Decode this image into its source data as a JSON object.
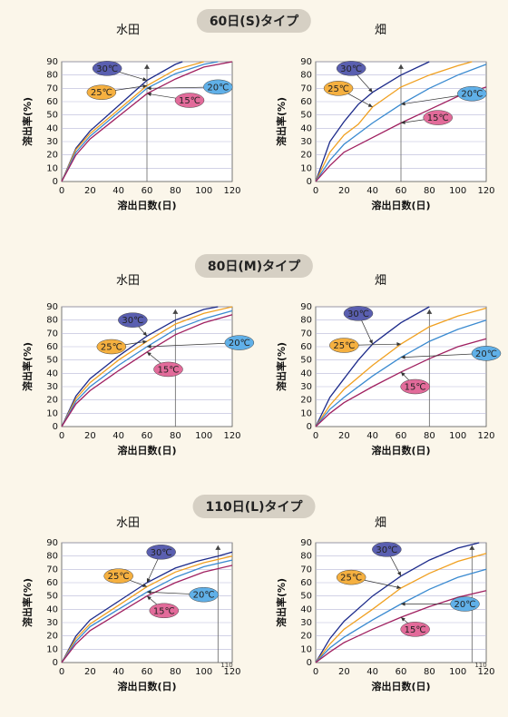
{
  "sections": [
    {
      "title": "60日(S)タイプ"
    },
    {
      "title": "80日(M)タイプ"
    },
    {
      "title": "110日(L)タイプ"
    }
  ],
  "chart_data": [
    {
      "type": "line",
      "section": 0,
      "caption": "水田",
      "xlabel": "溶出日数(日)",
      "ylabel": "溶出率(%)",
      "xlim": [
        0,
        120
      ],
      "ylim": [
        0,
        90
      ],
      "xticks": [
        0,
        20,
        40,
        60,
        80,
        100,
        120
      ],
      "yticks": [
        0,
        10,
        20,
        30,
        40,
        50,
        60,
        70,
        80,
        90
      ],
      "grid": true,
      "refline_x": 60,
      "annotation": "",
      "series": [
        {
          "name": "30℃",
          "color": "#1c2a8a",
          "bubble": "#5a5fb0",
          "points": [
            [
              0,
              0
            ],
            [
              10,
              25
            ],
            [
              20,
              38
            ],
            [
              40,
              57
            ],
            [
              60,
              76
            ],
            [
              80,
              88
            ],
            [
              85,
              90
            ]
          ]
        },
        {
          "name": "25℃",
          "color": "#f0a020",
          "bubble": "#f5b040",
          "points": [
            [
              0,
              0
            ],
            [
              10,
              24
            ],
            [
              20,
              36
            ],
            [
              40,
              54
            ],
            [
              60,
              72
            ],
            [
              80,
              84
            ],
            [
              100,
              90
            ]
          ]
        },
        {
          "name": "20℃",
          "color": "#3a8ad0",
          "bubble": "#60b0e8",
          "points": [
            [
              0,
              0
            ],
            [
              10,
              22
            ],
            [
              20,
              34
            ],
            [
              40,
              52
            ],
            [
              60,
              70
            ],
            [
              80,
              81
            ],
            [
              100,
              88
            ],
            [
              110,
              90
            ]
          ]
        },
        {
          "name": "15℃",
          "color": "#a02060",
          "bubble": "#e26b9a",
          "points": [
            [
              0,
              0
            ],
            [
              10,
              20
            ],
            [
              20,
              32
            ],
            [
              40,
              49
            ],
            [
              60,
              66
            ],
            [
              80,
              77
            ],
            [
              100,
              86
            ],
            [
              120,
              90
            ]
          ]
        }
      ]
    },
    {
      "type": "line",
      "section": 0,
      "caption": "畑",
      "xlabel": "溶出日数(日)",
      "ylabel": "溶出率(%)",
      "xlim": [
        0,
        120
      ],
      "ylim": [
        0,
        90
      ],
      "xticks": [
        0,
        20,
        40,
        60,
        80,
        100,
        120
      ],
      "yticks": [
        0,
        10,
        20,
        30,
        40,
        50,
        60,
        70,
        80,
        90
      ],
      "grid": true,
      "refline_x": 60,
      "annotation": "",
      "series": [
        {
          "name": "30℃",
          "color": "#1c2a8a",
          "bubble": "#5a5fb0",
          "points": [
            [
              0,
              0
            ],
            [
              10,
              30
            ],
            [
              20,
              45
            ],
            [
              30,
              58
            ],
            [
              40,
              67
            ],
            [
              60,
              80
            ],
            [
              80,
              90
            ]
          ]
        },
        {
          "name": "25℃",
          "color": "#f0a020",
          "bubble": "#f5b040",
          "points": [
            [
              0,
              0
            ],
            [
              10,
              22
            ],
            [
              20,
              35
            ],
            [
              30,
              43
            ],
            [
              40,
              56
            ],
            [
              60,
              71
            ],
            [
              80,
              80
            ],
            [
              100,
              87
            ],
            [
              110,
              90
            ]
          ]
        },
        {
          "name": "20℃",
          "color": "#3a8ad0",
          "bubble": "#60b0e8",
          "points": [
            [
              0,
              0
            ],
            [
              10,
              16
            ],
            [
              20,
              28
            ],
            [
              40,
              44
            ],
            [
              60,
              58
            ],
            [
              80,
              70
            ],
            [
              100,
              80
            ],
            [
              120,
              88
            ]
          ]
        },
        {
          "name": "15℃",
          "color": "#a02060",
          "bubble": "#e26b9a",
          "points": [
            [
              0,
              0
            ],
            [
              10,
              12
            ],
            [
              20,
              22
            ],
            [
              40,
              33
            ],
            [
              60,
              44
            ],
            [
              80,
              54
            ],
            [
              100,
              64
            ],
            [
              120,
              71
            ]
          ]
        }
      ]
    },
    {
      "type": "line",
      "section": 1,
      "caption": "水田",
      "xlabel": "溶出日数(日)",
      "ylabel": "溶出率(%)",
      "xlim": [
        0,
        120
      ],
      "ylim": [
        0,
        90
      ],
      "xticks": [
        0,
        20,
        40,
        60,
        80,
        100,
        120
      ],
      "yticks": [
        0,
        10,
        20,
        30,
        40,
        50,
        60,
        70,
        80,
        90
      ],
      "grid": true,
      "refline_x": 80,
      "annotation": "",
      "series": [
        {
          "name": "30℃",
          "color": "#1c2a8a",
          "bubble": "#5a5fb0",
          "points": [
            [
              0,
              0
            ],
            [
              10,
              23
            ],
            [
              20,
              36
            ],
            [
              40,
              53
            ],
            [
              60,
              68
            ],
            [
              80,
              80
            ],
            [
              100,
              88
            ],
            [
              110,
              90
            ]
          ]
        },
        {
          "name": "25℃",
          "color": "#f0a020",
          "bubble": "#f5b040",
          "points": [
            [
              0,
              0
            ],
            [
              10,
              21
            ],
            [
              20,
              33
            ],
            [
              40,
              50
            ],
            [
              60,
              64
            ],
            [
              80,
              77
            ],
            [
              100,
              85
            ],
            [
              120,
              90
            ]
          ]
        },
        {
          "name": "20℃",
          "color": "#3a8ad0",
          "bubble": "#60b0e8",
          "points": [
            [
              0,
              0
            ],
            [
              10,
              19
            ],
            [
              20,
              30
            ],
            [
              40,
              46
            ],
            [
              60,
              60
            ],
            [
              80,
              73
            ],
            [
              100,
              81
            ],
            [
              120,
              87
            ]
          ]
        },
        {
          "name": "15℃",
          "color": "#a02060",
          "bubble": "#e26b9a",
          "points": [
            [
              0,
              0
            ],
            [
              10,
              17
            ],
            [
              20,
              27
            ],
            [
              40,
              42
            ],
            [
              60,
              56
            ],
            [
              80,
              69
            ],
            [
              100,
              78
            ],
            [
              120,
              84
            ]
          ]
        }
      ]
    },
    {
      "type": "line",
      "section": 1,
      "caption": "畑",
      "xlabel": "溶出日数(日)",
      "ylabel": "溶出率(%)",
      "xlim": [
        0,
        120
      ],
      "ylim": [
        0,
        90
      ],
      "xticks": [
        0,
        20,
        40,
        60,
        80,
        100,
        120
      ],
      "yticks": [
        0,
        10,
        20,
        30,
        40,
        50,
        60,
        70,
        80,
        90
      ],
      "grid": true,
      "refline_x": 80,
      "annotation": "",
      "series": [
        {
          "name": "30℃",
          "color": "#1c2a8a",
          "bubble": "#5a5fb0",
          "points": [
            [
              0,
              0
            ],
            [
              10,
              22
            ],
            [
              20,
              36
            ],
            [
              30,
              50
            ],
            [
              40,
              62
            ],
            [
              50,
              70
            ],
            [
              60,
              78
            ],
            [
              80,
              90
            ]
          ]
        },
        {
          "name": "25℃",
          "color": "#f0a020",
          "bubble": "#f5b040",
          "points": [
            [
              0,
              0
            ],
            [
              10,
              16
            ],
            [
              20,
              28
            ],
            [
              40,
              46
            ],
            [
              60,
              62
            ],
            [
              80,
              75
            ],
            [
              100,
              83
            ],
            [
              120,
              89
            ]
          ]
        },
        {
          "name": "20℃",
          "color": "#3a8ad0",
          "bubble": "#60b0e8",
          "points": [
            [
              0,
              0
            ],
            [
              10,
              13
            ],
            [
              20,
              22
            ],
            [
              40,
              38
            ],
            [
              60,
              52
            ],
            [
              80,
              64
            ],
            [
              100,
              73
            ],
            [
              120,
              80
            ]
          ]
        },
        {
          "name": "15℃",
          "color": "#a02060",
          "bubble": "#e26b9a",
          "points": [
            [
              0,
              0
            ],
            [
              10,
              10
            ],
            [
              20,
              18
            ],
            [
              40,
              30
            ],
            [
              60,
              41
            ],
            [
              80,
              51
            ],
            [
              100,
              60
            ],
            [
              120,
              66
            ]
          ]
        }
      ]
    },
    {
      "type": "line",
      "section": 2,
      "caption": "水田",
      "xlabel": "溶出日数(日)",
      "ylabel": "溶出率(%)",
      "xlim": [
        0,
        120
      ],
      "ylim": [
        0,
        90
      ],
      "xticks": [
        0,
        20,
        40,
        60,
        80,
        100,
        120
      ],
      "yticks": [
        0,
        10,
        20,
        30,
        40,
        50,
        60,
        70,
        80,
        90
      ],
      "grid": true,
      "refline_x": 110,
      "annotation": "110",
      "series": [
        {
          "name": "30℃",
          "color": "#1c2a8a",
          "bubble": "#5a5fb0",
          "points": [
            [
              0,
              0
            ],
            [
              10,
              20
            ],
            [
              20,
              32
            ],
            [
              40,
              46
            ],
            [
              60,
              60
            ],
            [
              80,
              71
            ],
            [
              95,
              76
            ],
            [
              110,
              80
            ],
            [
              120,
              83
            ]
          ]
        },
        {
          "name": "25℃",
          "color": "#f0a020",
          "bubble": "#f5b040",
          "points": [
            [
              0,
              0
            ],
            [
              10,
              18
            ],
            [
              20,
              29
            ],
            [
              40,
              43
            ],
            [
              60,
              57
            ],
            [
              80,
              68
            ],
            [
              100,
              75
            ],
            [
              120,
              80
            ]
          ]
        },
        {
          "name": "20℃",
          "color": "#3a8ad0",
          "bubble": "#60b0e8",
          "points": [
            [
              0,
              0
            ],
            [
              10,
              16
            ],
            [
              20,
              27
            ],
            [
              40,
              40
            ],
            [
              60,
              53
            ],
            [
              80,
              64
            ],
            [
              100,
              72
            ],
            [
              120,
              77
            ]
          ]
        },
        {
          "name": "15℃",
          "color": "#a02060",
          "bubble": "#e26b9a",
          "points": [
            [
              0,
              0
            ],
            [
              10,
              14
            ],
            [
              20,
              24
            ],
            [
              40,
              37
            ],
            [
              60,
              50
            ],
            [
              80,
              60
            ],
            [
              100,
              68
            ],
            [
              120,
              73
            ]
          ]
        }
      ]
    },
    {
      "type": "line",
      "section": 2,
      "caption": "畑",
      "xlabel": "溶出日数(日)",
      "ylabel": "溶出率(%)",
      "xlim": [
        0,
        120
      ],
      "ylim": [
        0,
        90
      ],
      "xticks": [
        0,
        20,
        40,
        60,
        80,
        100,
        120
      ],
      "yticks": [
        0,
        10,
        20,
        30,
        40,
        50,
        60,
        70,
        80,
        90
      ],
      "grid": true,
      "refline_x": 110,
      "annotation": "110",
      "series": [
        {
          "name": "30℃",
          "color": "#1c2a8a",
          "bubble": "#5a5fb0",
          "points": [
            [
              0,
              0
            ],
            [
              10,
              18
            ],
            [
              20,
              31
            ],
            [
              40,
              50
            ],
            [
              60,
              65
            ],
            [
              80,
              77
            ],
            [
              100,
              86
            ],
            [
              115,
              90
            ]
          ]
        },
        {
          "name": "25℃",
          "color": "#f0a020",
          "bubble": "#f5b040",
          "points": [
            [
              0,
              0
            ],
            [
              10,
              14
            ],
            [
              20,
              25
            ],
            [
              40,
              40
            ],
            [
              60,
              56
            ],
            [
              80,
              67
            ],
            [
              100,
              76
            ],
            [
              120,
              82
            ]
          ]
        },
        {
          "name": "20℃",
          "color": "#3a8ad0",
          "bubble": "#60b0e8",
          "points": [
            [
              0,
              0
            ],
            [
              10,
              11
            ],
            [
              20,
              19
            ],
            [
              40,
              32
            ],
            [
              60,
              44
            ],
            [
              80,
              55
            ],
            [
              100,
              64
            ],
            [
              120,
              70
            ]
          ]
        },
        {
          "name": "15℃",
          "color": "#a02060",
          "bubble": "#e26b9a",
          "points": [
            [
              0,
              0
            ],
            [
              10,
              8
            ],
            [
              20,
              15
            ],
            [
              40,
              25
            ],
            [
              60,
              34
            ],
            [
              80,
              42
            ],
            [
              100,
              49
            ],
            [
              120,
              54
            ]
          ]
        }
      ]
    }
  ]
}
